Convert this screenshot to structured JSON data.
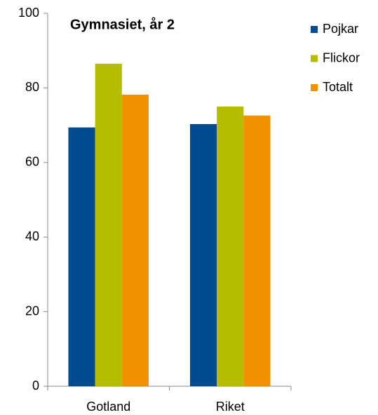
{
  "chart_data": {
    "type": "bar",
    "title": "Gymnasiet, år 2",
    "categories": [
      "Gotland",
      "Riket"
    ],
    "series": [
      {
        "name": "Pojkar",
        "color": "#004a8f",
        "values": [
          69.4,
          70.3
        ]
      },
      {
        "name": "Flickor",
        "color": "#b5bd00",
        "values": [
          86.5,
          75.0
        ]
      },
      {
        "name": "Totalt",
        "color": "#f39200",
        "values": [
          78.2,
          72.6
        ]
      }
    ],
    "ylim": [
      0,
      100
    ],
    "yticks": [
      0,
      20,
      40,
      60,
      80,
      100
    ],
    "grid": false,
    "legend": "right"
  }
}
